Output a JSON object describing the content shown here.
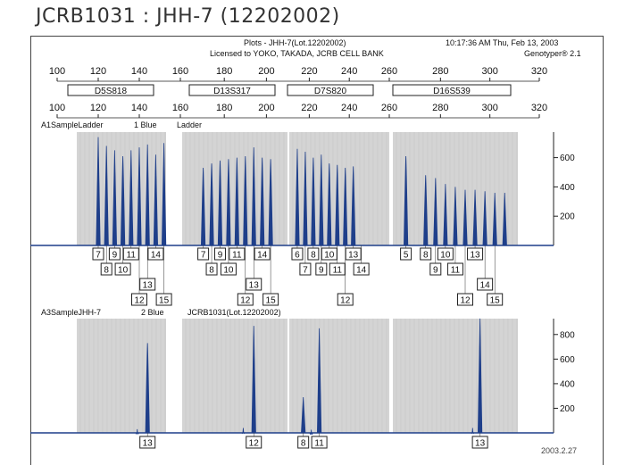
{
  "page_title": "JCRB1031 : JHH-7 (12202002)",
  "header": {
    "plots_label": "Plots - JHH-7(Lot.12202002)",
    "license": "Licensed to YOKO, TAKADA, JCRB CELL BANK",
    "timestamp": "10:17:36 AM Thu, Feb 13, 2003",
    "software": "Genotyper® 2.1"
  },
  "top_ticks": [
    "100",
    "120",
    "140",
    "160",
    "180",
    "200",
    "220",
    "240",
    "260",
    "280",
    "300",
    "320"
  ],
  "markers": [
    "D5S818",
    "D13S317",
    "D7S820",
    "D16S539"
  ],
  "stamp": "2003.2.27",
  "colors": {
    "trace": "#1f3f8a",
    "shade": "#d4d4d4",
    "frame": "#444444"
  },
  "chart_data": [
    {
      "type": "line",
      "panel": "ladder",
      "label_left": "A1SampleLadder",
      "label_dye": "1 Blue",
      "label_right": "Ladder",
      "x_unit": "bp",
      "xlim": [
        100,
        320
      ],
      "ylim": [
        0,
        750
      ],
      "y_ticks": [
        200,
        400,
        600
      ],
      "peaks": [
        {
          "x": 120,
          "y": 740
        },
        {
          "x": 124,
          "y": 680
        },
        {
          "x": 128,
          "y": 650
        },
        {
          "x": 132,
          "y": 610
        },
        {
          "x": 136,
          "y": 650
        },
        {
          "x": 140,
          "y": 670
        },
        {
          "x": 144,
          "y": 690
        },
        {
          "x": 148,
          "y": 620
        },
        {
          "x": 152,
          "y": 700
        },
        {
          "x": 170,
          "y": 530
        },
        {
          "x": 174,
          "y": 560
        },
        {
          "x": 178,
          "y": 580
        },
        {
          "x": 182,
          "y": 590
        },
        {
          "x": 186,
          "y": 600
        },
        {
          "x": 190,
          "y": 610
        },
        {
          "x": 194,
          "y": 670
        },
        {
          "x": 198,
          "y": 600
        },
        {
          "x": 202,
          "y": 590
        },
        {
          "x": 214,
          "y": 660
        },
        {
          "x": 218,
          "y": 640
        },
        {
          "x": 222,
          "y": 600
        },
        {
          "x": 226,
          "y": 620
        },
        {
          "x": 230,
          "y": 560
        },
        {
          "x": 234,
          "y": 550
        },
        {
          "x": 238,
          "y": 530
        },
        {
          "x": 242,
          "y": 540
        },
        {
          "x": 266,
          "y": 610
        },
        {
          "x": 274,
          "y": 480
        },
        {
          "x": 278,
          "y": 460
        },
        {
          "x": 282,
          "y": 420
        },
        {
          "x": 286,
          "y": 400
        },
        {
          "x": 290,
          "y": 380
        },
        {
          "x": 294,
          "y": 380
        },
        {
          "x": 298,
          "y": 370
        },
        {
          "x": 302,
          "y": 360
        },
        {
          "x": 306,
          "y": 360
        }
      ],
      "allele_calls": [
        {
          "x": 120,
          "label": "7",
          "row": 0
        },
        {
          "x": 124,
          "label": "8",
          "row": 1
        },
        {
          "x": 128,
          "label": "9",
          "row": 0
        },
        {
          "x": 132,
          "label": "10",
          "row": 1
        },
        {
          "x": 136,
          "label": "11",
          "row": 0
        },
        {
          "x": 140,
          "label": "12",
          "row": 3
        },
        {
          "x": 144,
          "label": "13",
          "row": 2
        },
        {
          "x": 148,
          "label": "14",
          "row": 0
        },
        {
          "x": 152,
          "label": "15",
          "row": 3
        },
        {
          "x": 170,
          "label": "7",
          "row": 0
        },
        {
          "x": 174,
          "label": "8",
          "row": 1
        },
        {
          "x": 178,
          "label": "9",
          "row": 0
        },
        {
          "x": 182,
          "label": "10",
          "row": 1
        },
        {
          "x": 186,
          "label": "11",
          "row": 0
        },
        {
          "x": 190,
          "label": "12",
          "row": 3
        },
        {
          "x": 194,
          "label": "13",
          "row": 2
        },
        {
          "x": 198,
          "label": "14",
          "row": 0
        },
        {
          "x": 202,
          "label": "15",
          "row": 3
        },
        {
          "x": 214,
          "label": "6",
          "row": 0
        },
        {
          "x": 218,
          "label": "7",
          "row": 1
        },
        {
          "x": 222,
          "label": "8",
          "row": 0
        },
        {
          "x": 226,
          "label": "9",
          "row": 1
        },
        {
          "x": 230,
          "label": "10",
          "row": 0
        },
        {
          "x": 234,
          "label": "11",
          "row": 1
        },
        {
          "x": 238,
          "label": "12",
          "row": 3
        },
        {
          "x": 242,
          "label": "13",
          "row": 0
        },
        {
          "x": 246,
          "label": "14",
          "row": 1
        },
        {
          "x": 266,
          "label": "5",
          "row": 0
        },
        {
          "x": 274,
          "label": "8",
          "row": 0
        },
        {
          "x": 278,
          "label": "9",
          "row": 1
        },
        {
          "x": 282,
          "label": "10",
          "row": 0
        },
        {
          "x": 286,
          "label": "11",
          "row": 1
        },
        {
          "x": 290,
          "label": "12",
          "row": 3
        },
        {
          "x": 294,
          "label": "13",
          "row": 0
        },
        {
          "x": 298,
          "label": "14",
          "row": 2
        },
        {
          "x": 302,
          "label": "15",
          "row": 3
        }
      ]
    },
    {
      "type": "line",
      "panel": "sample",
      "label_left": "A3SampleJHH-7",
      "label_dye": "2 Blue",
      "label_right": "JCRB1031(Lot.12202002)",
      "x_unit": "bp",
      "xlim": [
        100,
        320
      ],
      "ylim": [
        0,
        900
      ],
      "y_ticks": [
        200,
        400,
        600,
        800
      ],
      "peaks": [
        {
          "x": 139,
          "y": 30
        },
        {
          "x": 144,
          "y": 730
        },
        {
          "x": 189,
          "y": 40
        },
        {
          "x": 194,
          "y": 870
        },
        {
          "x": 217,
          "y": 290
        },
        {
          "x": 225,
          "y": 850
        },
        {
          "x": 221,
          "y": 25
        },
        {
          "x": 296,
          "y": 930
        },
        {
          "x": 293,
          "y": 40
        }
      ],
      "allele_calls": [
        {
          "x": 144,
          "label": "13",
          "row": 0
        },
        {
          "x": 194,
          "label": "12",
          "row": 0
        },
        {
          "x": 217,
          "label": "8",
          "row": 0
        },
        {
          "x": 225,
          "label": "11",
          "row": 0
        },
        {
          "x": 296,
          "label": "13",
          "row": 0
        }
      ]
    }
  ]
}
